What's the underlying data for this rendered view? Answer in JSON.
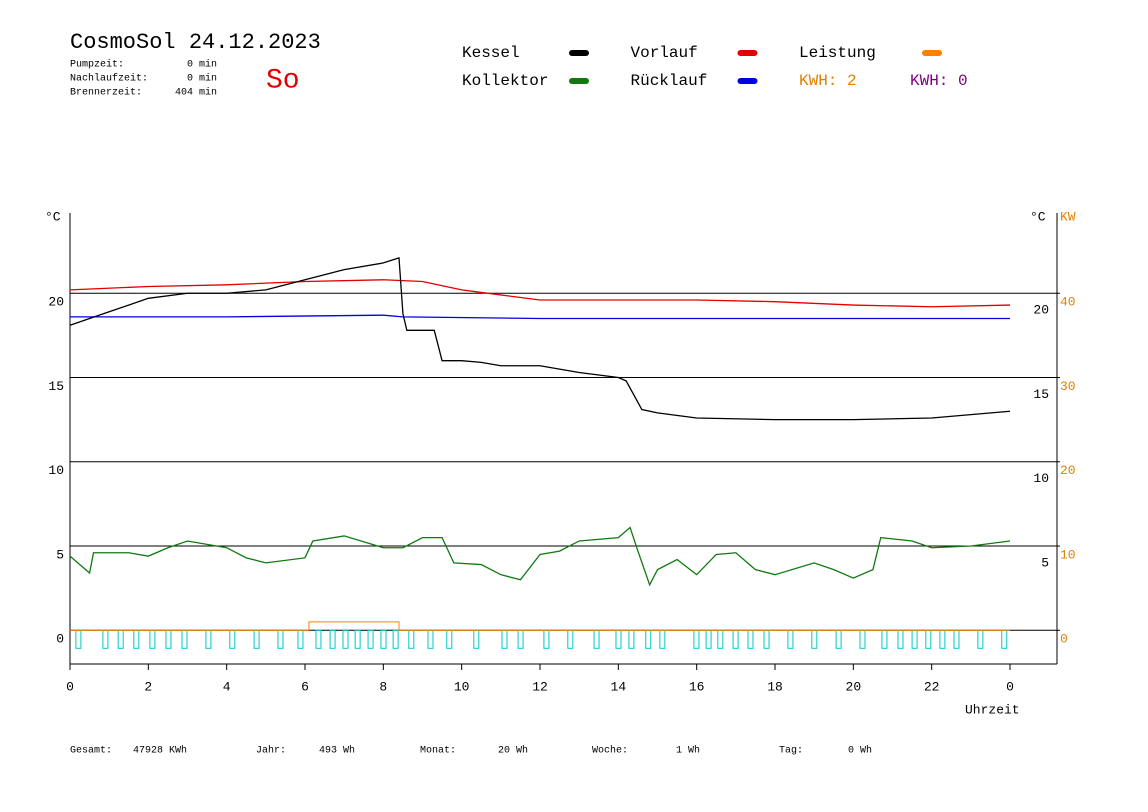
{
  "chart_data": {
    "type": "line",
    "title": "CosmoSol 24.12.2023",
    "weekday": "So",
    "stats": [
      {
        "label": "Pumpzeit:",
        "value": "0 min"
      },
      {
        "label": "Nachlaufzeit:",
        "value": "0 min"
      },
      {
        "label": "Brennerzeit:",
        "value": "404 min"
      }
    ],
    "y_label": "°C",
    "y_right_label": "°C",
    "y2_label": "KW",
    "x_label": "Uhrzeit",
    "xlim": [
      0,
      25.2
    ],
    "xticks": [
      0,
      2,
      4,
      6,
      8,
      10,
      12,
      14,
      16,
      18,
      20,
      22,
      {
        "value": 24,
        "label": "0"
      }
    ],
    "ylim": [
      -2,
      25
    ],
    "yticks": [
      0,
      5,
      10,
      15,
      20
    ],
    "y_right_ticks": [
      5,
      10,
      15,
      20
    ],
    "y2lim": [
      -4,
      50
    ],
    "y2ticks": [
      0,
      10,
      20,
      30,
      40
    ],
    "grid": true,
    "series": [
      {
        "name": "Kessel",
        "color": "#000000",
        "x": [
          0,
          1,
          2,
          3,
          4,
          5,
          6,
          7,
          8,
          8.4,
          8.5,
          8.6,
          9.3,
          9.5,
          10,
          10.5,
          11,
          12,
          13,
          14,
          14.2,
          14.6,
          15,
          16,
          18,
          20,
          22,
          23,
          24
        ],
        "values": [
          18.1,
          18.9,
          19.7,
          20.0,
          20.0,
          20.2,
          20.8,
          21.4,
          21.8,
          22.1,
          18.8,
          17.8,
          17.8,
          16.0,
          16.0,
          15.9,
          15.7,
          15.7,
          15.3,
          15.0,
          14.8,
          13.1,
          12.9,
          12.6,
          12.5,
          12.5,
          12.6,
          12.8,
          13.0
        ]
      },
      {
        "name": "Kollektor",
        "color": "#107a10",
        "x": [
          0,
          0.5,
          0.6,
          1.5,
          2,
          2.5,
          3,
          4,
          4.5,
          5,
          6,
          6.2,
          7,
          8,
          8.5,
          9,
          9.5,
          9.8,
          10.5,
          11,
          11.5,
          12,
          12.5,
          13,
          14,
          14.3,
          14.5,
          14.8,
          15,
          15.5,
          16,
          16.5,
          17,
          17.5,
          18,
          19,
          19.5,
          20,
          20.5,
          20.7,
          21.5,
          22,
          23,
          24
        ],
        "values": [
          4.4,
          3.4,
          4.6,
          4.6,
          4.4,
          4.9,
          5.3,
          4.9,
          4.3,
          4.0,
          4.3,
          5.3,
          5.6,
          4.9,
          4.9,
          5.5,
          5.5,
          4.0,
          3.9,
          3.3,
          3.0,
          4.5,
          4.7,
          5.3,
          5.5,
          6.1,
          4.7,
          2.7,
          3.6,
          4.2,
          3.3,
          4.5,
          4.6,
          3.6,
          3.3,
          4.0,
          3.6,
          3.1,
          3.6,
          5.5,
          5.3,
          4.9,
          5.0,
          5.3
        ]
      },
      {
        "name": "Vorlauf",
        "color": "#e00000",
        "x": [
          0,
          2,
          4,
          6,
          8,
          9,
          10,
          11,
          12,
          14,
          16,
          18,
          20,
          22,
          24
        ],
        "values": [
          20.2,
          20.4,
          20.5,
          20.7,
          20.8,
          20.7,
          20.2,
          19.9,
          19.6,
          19.6,
          19.6,
          19.5,
          19.3,
          19.2,
          19.3
        ]
      },
      {
        "name": "Rücklauf",
        "color": "#0000e0",
        "x": [
          0,
          4,
          8,
          8.5,
          12,
          16,
          20,
          24
        ],
        "values": [
          18.6,
          18.6,
          18.7,
          18.6,
          18.5,
          18.5,
          18.5,
          18.5
        ]
      },
      {
        "name": "Leistung",
        "color": "#ff8000",
        "axis": "y2",
        "x": [
          0,
          6.1,
          6.1,
          8.4,
          8.4,
          24
        ],
        "values": [
          0,
          0,
          1,
          1,
          0,
          0
        ]
      }
    ],
    "kwh_labels": [
      {
        "text": "KWH: 2",
        "color": "#e08000"
      },
      {
        "text": "KWH: 0",
        "color": "#800080"
      }
    ],
    "status_pulses": {
      "color": "#00c8c8",
      "starts": [
        0.15,
        0.84,
        1.23,
        1.63,
        2.04,
        2.45,
        2.86,
        3.47,
        4.08,
        4.7,
        5.31,
        5.82,
        6.28,
        6.64,
        6.97,
        7.28,
        7.61,
        7.94,
        8.25,
        8.65,
        9.14,
        9.62,
        10.31,
        11.03,
        11.44,
        12.1,
        12.71,
        13.38,
        13.94,
        14.27,
        14.7,
        15.06,
        15.93,
        16.24,
        16.54,
        16.93,
        17.31,
        17.72,
        18.33,
        18.94,
        19.56,
        20.17,
        20.73,
        21.14,
        21.5,
        21.85,
        22.21,
        22.57,
        23.18,
        23.79
      ]
    },
    "totals": [
      {
        "label": "Gesamt:",
        "value": "47928 KWh"
      },
      {
        "label": "Jahr:",
        "value": "493 Wh"
      },
      {
        "label": "Monat:",
        "value": "20 Wh"
      },
      {
        "label": "Woche:",
        "value": "1 Wh"
      },
      {
        "label": "Tag:",
        "value": "0 Wh"
      }
    ]
  }
}
